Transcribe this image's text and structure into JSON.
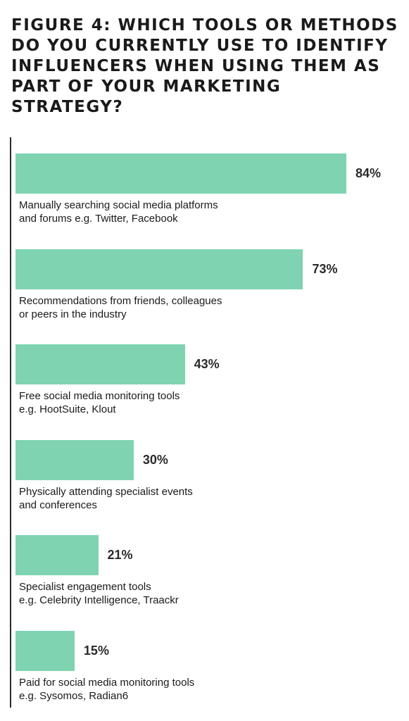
{
  "chart_data": {
    "type": "bar",
    "orientation": "horizontal",
    "title": "FIGURE 4: WHICH TOOLS OR METHODS DO YOU CURRENTLY USE TO IDENTIFY INFLUENCERS WHEN USING THEM AS PART OF YOUR MARKETING STRATEGY?",
    "categories": [
      "Manually searching social media platforms\nand forums e.g. Twitter, Facebook",
      "Recommendations from friends, colleagues\nor peers in the industry",
      "Free social media monitoring tools\ne.g. HootSuite, Klout",
      "Physically attending specialist events\nand conferences",
      "Specialist engagement tools\ne.g. Celebrity Intelligence, Traackr",
      "Paid for social media monitoring tools\ne.g. Sysomos, Radian6"
    ],
    "values": [
      84,
      73,
      43,
      30,
      21,
      15
    ],
    "value_labels": [
      "84%",
      "73%",
      "43%",
      "30%",
      "21%",
      "15%"
    ],
    "unit": "%",
    "bar_color": "#7fd3b1",
    "xlim": [
      0,
      100
    ],
    "grid": false,
    "legend": "none"
  }
}
